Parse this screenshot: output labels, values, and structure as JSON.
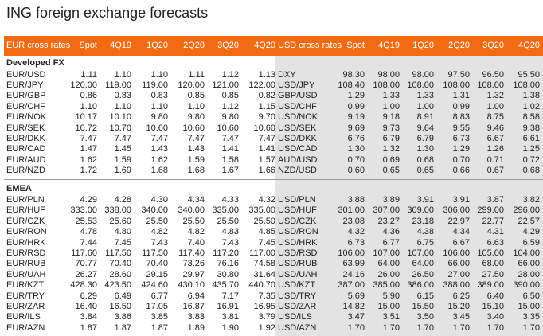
{
  "title": "ING foreign exchange forecasts",
  "left_headers": [
    "EUR cross rates",
    "Spot",
    "4Q19",
    "1Q20",
    "2Q20",
    "3Q20",
    "4Q20"
  ],
  "right_headers": [
    "USD cross rates",
    "Spot",
    "4Q19",
    "1Q20",
    "2Q20",
    "3Q20",
    "4Q20"
  ],
  "sections": [
    {
      "name": "Developed FX",
      "rows": [
        {
          "left": [
            "EUR/USD",
            "1.11",
            "1.10",
            "1.10",
            "1.11",
            "1.12",
            "1.13"
          ],
          "right": [
            "DXY",
            "98.30",
            "98.00",
            "98.00",
            "97.50",
            "96.50",
            "95.50"
          ]
        },
        {
          "left": [
            "EUR/JPY",
            "120.00",
            "119.00",
            "119.00",
            "120.00",
            "121.00",
            "122.00"
          ],
          "right": [
            "USD/JPY",
            "108.40",
            "108.00",
            "108.00",
            "108.00",
            "108.00",
            "108.00"
          ]
        },
        {
          "left": [
            "EUR/GBP",
            "0.86",
            "0.83",
            "0.83",
            "0.85",
            "0.85",
            "0.82"
          ],
          "right": [
            "GBP/USD",
            "1.29",
            "1.33",
            "1.33",
            "1.31",
            "1.32",
            "1.38"
          ]
        },
        {
          "left": [
            "EUR/CHF",
            "1.10",
            "1.10",
            "1.10",
            "1.10",
            "1.12",
            "1.15"
          ],
          "right": [
            "USD/CHF",
            "0.99",
            "1.00",
            "1.00",
            "0.99",
            "1.00",
            "1.02"
          ]
        },
        {
          "left": [
            "EUR/NOK",
            "10.17",
            "10.10",
            "9.80",
            "9.80",
            "9.80",
            "9.70"
          ],
          "right": [
            "USD/NOK",
            "9.19",
            "9.18",
            "8.91",
            "8.83",
            "8.75",
            "8.58"
          ]
        },
        {
          "left": [
            "EUR/SEK",
            "10.72",
            "10.70",
            "10.60",
            "10.60",
            "10.60",
            "10.60"
          ],
          "right": [
            "USD/SEK",
            "9.69",
            "9.73",
            "9.64",
            "9.55",
            "9.46",
            "9.38"
          ]
        },
        {
          "left": [
            "EUR/DKK",
            "7.47",
            "7.47",
            "7.47",
            "7.47",
            "7.47",
            "7.47"
          ],
          "right": [
            "USD/DKK",
            "6.76",
            "6.79",
            "6.79",
            "6.73",
            "6.67",
            "6.61"
          ]
        },
        {
          "left": [
            "EUR/CAD",
            "1.47",
            "1.45",
            "1.43",
            "1.43",
            "1.41",
            "1.41"
          ],
          "right": [
            "USD/CAD",
            "1.30",
            "1.32",
            "1.30",
            "1.29",
            "1.26",
            "1.25"
          ]
        },
        {
          "left": [
            "EUR/AUD",
            "1.62",
            "1.59",
            "1.62",
            "1.59",
            "1.58",
            "1.57"
          ],
          "right": [
            "AUD/USD",
            "0.70",
            "0.69",
            "0.68",
            "0.70",
            "0.71",
            "0.72"
          ]
        },
        {
          "left": [
            "EUR/NZD",
            "1.72",
            "1.69",
            "1.68",
            "1.68",
            "1.67",
            "1.66"
          ],
          "right": [
            "NZD/USD",
            "0.60",
            "0.65",
            "0.65",
            "0.66",
            "0.67",
            "0.68"
          ]
        }
      ]
    },
    {
      "name": "EMEA",
      "rows": [
        {
          "left": [
            "EUR/PLN",
            "4.29",
            "4.28",
            "4.30",
            "4.34",
            "4.33",
            "4.32"
          ],
          "right": [
            "USD/PLN",
            "3.88",
            "3.89",
            "3.91",
            "3.91",
            "3.87",
            "3.82"
          ]
        },
        {
          "left": [
            "EUR/HUF",
            "333.00",
            "338.00",
            "340.00",
            "340.00",
            "335.00",
            "335.00"
          ],
          "right": [
            "USD/HUF",
            "301.00",
            "307.00",
            "309.00",
            "306.00",
            "299.00",
            "296.00"
          ]
        },
        {
          "left": [
            "EUR/CZK",
            "25.53",
            "25.60",
            "25.50",
            "25.50",
            "25.50",
            "25.50"
          ],
          "right": [
            "USD/CZK",
            "23.08",
            "23.27",
            "23.18",
            "22.97",
            "22.77",
            "22.57"
          ]
        },
        {
          "left": [
            "EUR/RON",
            "4.78",
            "4.80",
            "4.82",
            "4.82",
            "4.83",
            "4.85"
          ],
          "right": [
            "USD/RON",
            "4.32",
            "4.36",
            "4.38",
            "4.34",
            "4.31",
            "4.29"
          ]
        },
        {
          "left": [
            "EUR/HRK",
            "7.44",
            "7.45",
            "7.43",
            "7.40",
            "7.43",
            "7.45"
          ],
          "right": [
            "USD/HRK",
            "6.73",
            "6.77",
            "6.75",
            "6.67",
            "6.63",
            "6.59"
          ]
        },
        {
          "left": [
            "EUR/RSD",
            "117.60",
            "117.50",
            "117.50",
            "117.40",
            "117.20",
            "117.00"
          ],
          "right": [
            "USD/RSD",
            "106.00",
            "107.00",
            "107.00",
            "106.00",
            "105.00",
            "104.00"
          ]
        },
        {
          "left": [
            "EUR/RUB",
            "70.77",
            "70.40",
            "70.40",
            "73.26",
            "76.16",
            "74.58"
          ],
          "right": [
            "USD/RUB",
            "63.99",
            "64.00",
            "64.00",
            "66.00",
            "68.00",
            "66.00"
          ]
        },
        {
          "left": [
            "EUR/UAH",
            "26.27",
            "28.60",
            "29.15",
            "29.97",
            "30.80",
            "31.64"
          ],
          "right": [
            "USD/UAH",
            "24.16",
            "26.00",
            "26.50",
            "27.00",
            "27.50",
            "28.00"
          ]
        },
        {
          "left": [
            "EUR/KZT",
            "428.30",
            "423.50",
            "424.60",
            "430.10",
            "435.70",
            "440.70"
          ],
          "right": [
            "USD/KZT",
            "387.00",
            "385.00",
            "386.00",
            "388.00",
            "389.00",
            "390.00"
          ]
        },
        {
          "left": [
            "EUR/TRY",
            "6.29",
            "6.49",
            "6.77",
            "6.94",
            "7.17",
            "7.35"
          ],
          "right": [
            "USD/TRY",
            "5.69",
            "5.90",
            "6.15",
            "6.25",
            "6.40",
            "6.50"
          ]
        },
        {
          "left": [
            "EUR/ZAR",
            "16.40",
            "16.50",
            "17.05",
            "16.87",
            "16.91",
            "16.95"
          ],
          "right": [
            "USD/ZAR",
            "14.82",
            "15.00",
            "15.50",
            "15.20",
            "15.10",
            "15.00"
          ]
        },
        {
          "left": [
            "EUR/ILS",
            "3.84",
            "3.86",
            "3.85",
            "3.83",
            "3.81",
            "3.79"
          ],
          "right": [
            "USD/ILS",
            "3.47",
            "3.51",
            "3.50",
            "3.45",
            "3.40",
            "3.35"
          ]
        },
        {
          "left": [
            "EUR/AZN",
            "1.87",
            "1.87",
            "1.87",
            "1.89",
            "1.90",
            "1.92"
          ],
          "right": [
            "USD/AZN",
            "1.70",
            "1.70",
            "1.70",
            "1.70",
            "1.70",
            "1.70"
          ]
        }
      ]
    }
  ]
}
